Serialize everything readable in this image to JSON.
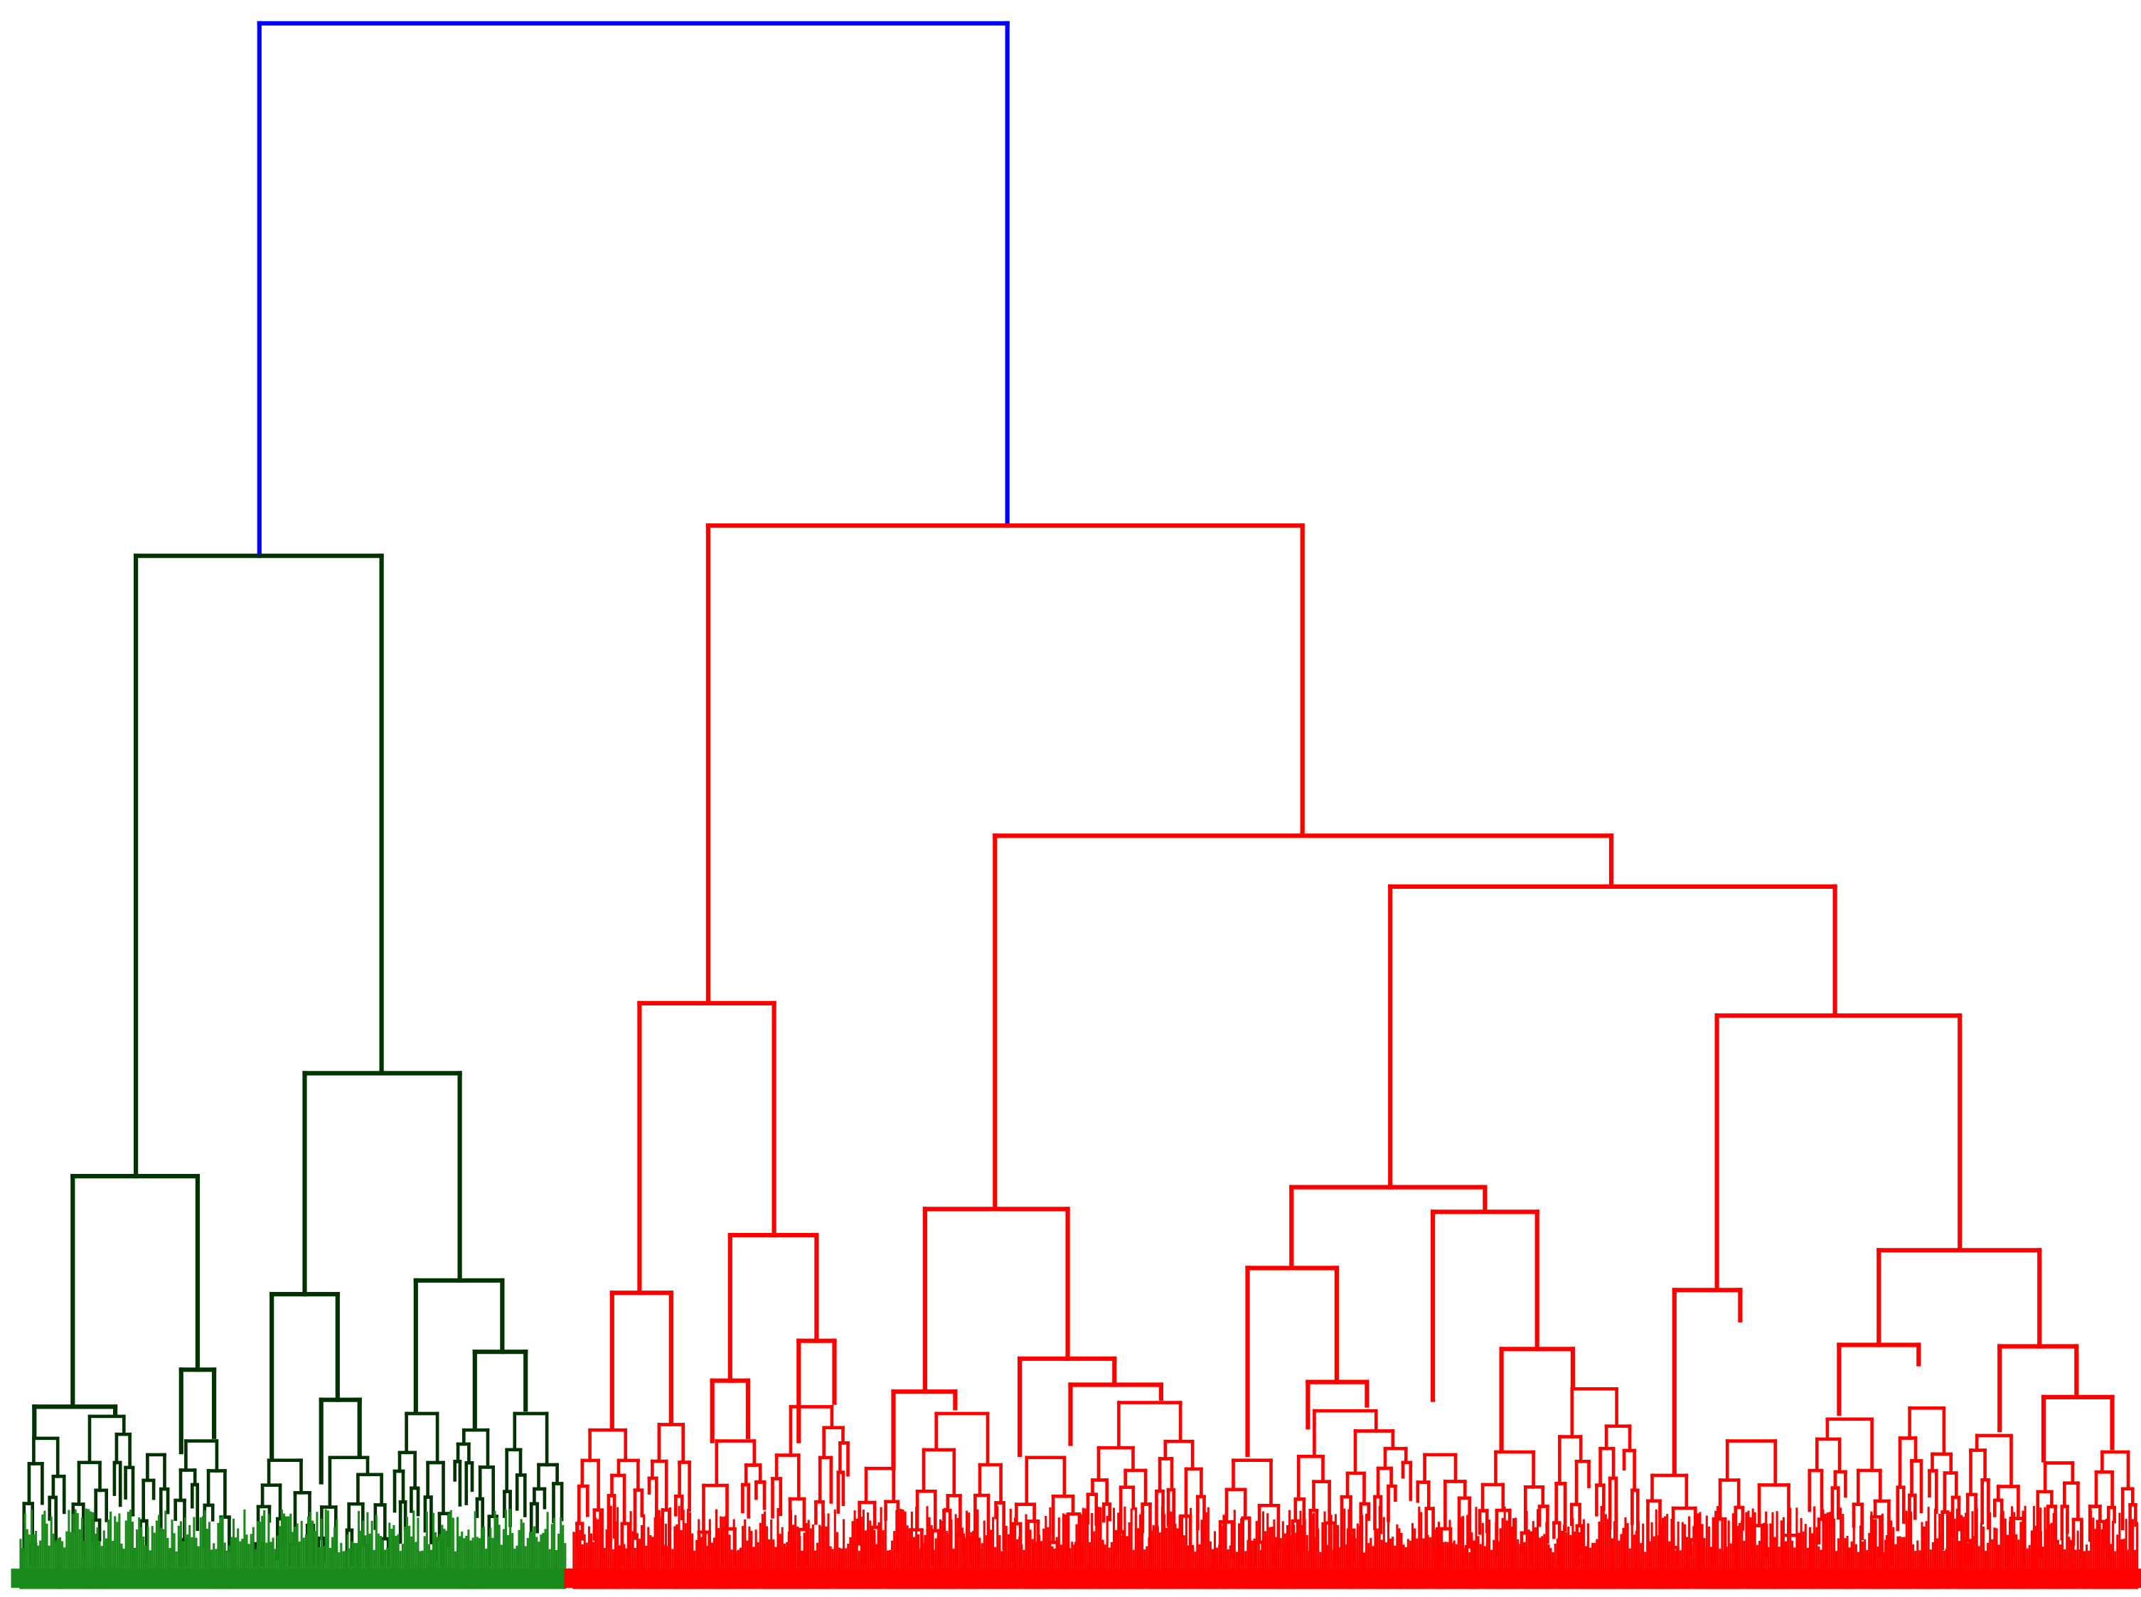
{
  "diagram": {
    "type": "dendrogram",
    "orientation": "top-down",
    "colors": {
      "root_link": "#0000ff",
      "cluster_left": "#003300",
      "cluster_left_leaves": "#1a8a1a",
      "cluster_right": "#ff0000",
      "background": "#ffffff"
    },
    "clusters": [
      {
        "name": "left",
        "leaf_share": 0.26,
        "color_key": "cluster_left"
      },
      {
        "name": "right",
        "leaf_share": 0.74,
        "color_key": "cluster_right"
      }
    ]
  }
}
